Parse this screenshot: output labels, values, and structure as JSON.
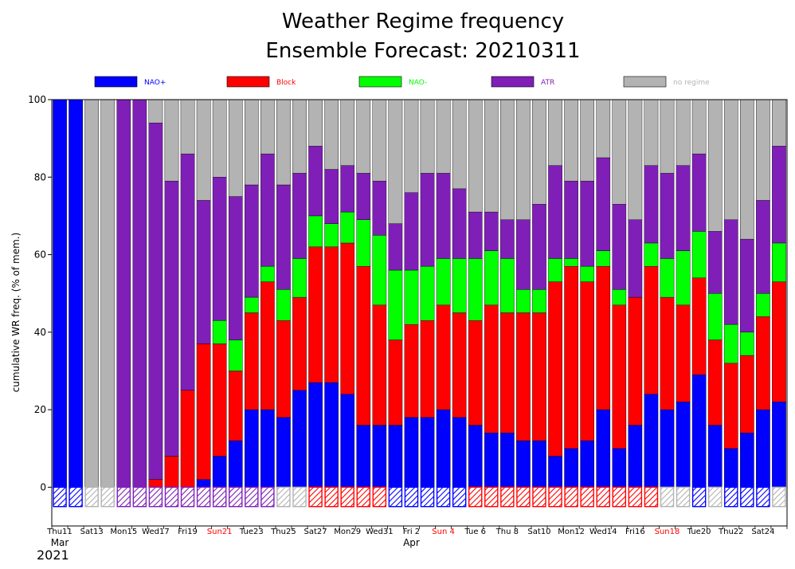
{
  "chart_data": {
    "type": "bar",
    "stacked": true,
    "title_line1": "Weather Regime frequency",
    "title_line2": "Ensemble Forecast: 20210311",
    "ylabel": "cumulative WR freq. (% of mem.)",
    "ylim": [
      -10,
      100
    ],
    "yticks": [
      0,
      20,
      40,
      60,
      80,
      100
    ],
    "year_label": "2021",
    "month_labels": [
      {
        "label": "Mar",
        "day_index": 0
      },
      {
        "label": "Apr",
        "day_index": 22
      }
    ],
    "legend": [
      {
        "key": "nao_plus",
        "label": "NAO+",
        "color": "#0000ff",
        "text_color": "#0000ff"
      },
      {
        "key": "block",
        "label": "Block",
        "color": "#ff0000",
        "text_color": "#ff0000"
      },
      {
        "key": "nao_minus",
        "label": "NAO-",
        "color": "#00ff00",
        "text_color": "#00ff00"
      },
      {
        "key": "atr",
        "label": "ATR",
        "color": "#7f1fb7",
        "text_color": "#7f1fb7"
      },
      {
        "key": "no_regime",
        "label": "no regime",
        "color": "#b3b3b3",
        "text_color": "#b3b3b3"
      }
    ],
    "x_ticks": [
      {
        "label": "Thu11",
        "day_index": 0,
        "color": "#000000"
      },
      {
        "label": "Sat13",
        "day_index": 2,
        "color": "#000000"
      },
      {
        "label": "Mon15",
        "day_index": 4,
        "color": "#000000"
      },
      {
        "label": "Wed17",
        "day_index": 6,
        "color": "#000000"
      },
      {
        "label": "Fri19",
        "day_index": 8,
        "color": "#000000"
      },
      {
        "label": "Sun21",
        "day_index": 10,
        "color": "#ff0000"
      },
      {
        "label": "Tue23",
        "day_index": 12,
        "color": "#000000"
      },
      {
        "label": "Thu25",
        "day_index": 14,
        "color": "#000000"
      },
      {
        "label": "Sat27",
        "day_index": 16,
        "color": "#000000"
      },
      {
        "label": "Mon29",
        "day_index": 18,
        "color": "#000000"
      },
      {
        "label": "Wed31",
        "day_index": 20,
        "color": "#000000"
      },
      {
        "label": "Fri 2",
        "day_index": 22,
        "color": "#000000"
      },
      {
        "label": "Sun 4",
        "day_index": 24,
        "color": "#ff0000"
      },
      {
        "label": "Tue 6",
        "day_index": 26,
        "color": "#000000"
      },
      {
        "label": "Thu 8",
        "day_index": 28,
        "color": "#000000"
      },
      {
        "label": "Sat10",
        "day_index": 30,
        "color": "#000000"
      },
      {
        "label": "Mon12",
        "day_index": 32,
        "color": "#000000"
      },
      {
        "label": "Wed14",
        "day_index": 34,
        "color": "#000000"
      },
      {
        "label": "Fri16",
        "day_index": 36,
        "color": "#000000"
      },
      {
        "label": "Sun18",
        "day_index": 38,
        "color": "#ff0000"
      },
      {
        "label": "Tue20",
        "day_index": 40,
        "color": "#000000"
      },
      {
        "label": "Thu22",
        "day_index": 42,
        "color": "#000000"
      },
      {
        "label": "Sat24",
        "day_index": 44,
        "color": "#000000"
      }
    ],
    "days": [
      "2021-03-11",
      "2021-03-12",
      "2021-03-13",
      "2021-03-14",
      "2021-03-15",
      "2021-03-16",
      "2021-03-17",
      "2021-03-18",
      "2021-03-19",
      "2021-03-20",
      "2021-03-21",
      "2021-03-22",
      "2021-03-23",
      "2021-03-24",
      "2021-03-25",
      "2021-03-26",
      "2021-03-27",
      "2021-03-28",
      "2021-03-29",
      "2021-03-30",
      "2021-03-31",
      "2021-04-01",
      "2021-04-02",
      "2021-04-03",
      "2021-04-04",
      "2021-04-05",
      "2021-04-06",
      "2021-04-07",
      "2021-04-08",
      "2021-04-09",
      "2021-04-10",
      "2021-04-11",
      "2021-04-12",
      "2021-04-13",
      "2021-04-14",
      "2021-04-15",
      "2021-04-16",
      "2021-04-17",
      "2021-04-18",
      "2021-04-19",
      "2021-04-20",
      "2021-04-21",
      "2021-04-22",
      "2021-04-23",
      "2021-04-24",
      "2021-04-25"
    ],
    "series": [
      {
        "name": "NAO+",
        "key": "nao_plus",
        "values": [
          100,
          100,
          0,
          0,
          0,
          0,
          0,
          0,
          0,
          2,
          8,
          12,
          20,
          20,
          18,
          25,
          27,
          27,
          24,
          16,
          16,
          16,
          18,
          18,
          20,
          18,
          16,
          14,
          14,
          12,
          12,
          8,
          10,
          12,
          20,
          10,
          16,
          24,
          20,
          22,
          29,
          16,
          10,
          14,
          20,
          22
        ]
      },
      {
        "name": "Block",
        "key": "block",
        "values": [
          0,
          0,
          0,
          0,
          0,
          0,
          2,
          8,
          25,
          35,
          29,
          18,
          25,
          33,
          25,
          24,
          35,
          35,
          39,
          41,
          31,
          22,
          24,
          25,
          27,
          27,
          27,
          33,
          31,
          33,
          33,
          45,
          47,
          41,
          37,
          37,
          33,
          33,
          29,
          25,
          25,
          22,
          22,
          20,
          24,
          31
        ]
      },
      {
        "name": "NAO-",
        "key": "nao_minus",
        "values": [
          0,
          0,
          0,
          0,
          0,
          0,
          0,
          0,
          0,
          0,
          6,
          8,
          4,
          4,
          8,
          10,
          8,
          6,
          8,
          12,
          18,
          18,
          14,
          14,
          12,
          14,
          16,
          14,
          14,
          6,
          6,
          6,
          2,
          4,
          4,
          4,
          0,
          6,
          10,
          14,
          12,
          12,
          10,
          6,
          6,
          10
        ]
      },
      {
        "name": "ATR",
        "key": "atr",
        "values": [
          0,
          0,
          0,
          0,
          100,
          100,
          92,
          71,
          61,
          37,
          37,
          37,
          29,
          29,
          27,
          22,
          18,
          14,
          12,
          12,
          14,
          12,
          20,
          24,
          22,
          18,
          12,
          10,
          10,
          18,
          22,
          24,
          20,
          22,
          24,
          22,
          20,
          20,
          22,
          22,
          20,
          16,
          27,
          24,
          24,
          25
        ]
      },
      {
        "name": "no regime",
        "key": "no_regime",
        "values": [
          0,
          0,
          100,
          100,
          0,
          0,
          6,
          21,
          14,
          26,
          20,
          25,
          22,
          14,
          22,
          19,
          12,
          18,
          17,
          19,
          21,
          32,
          24,
          19,
          19,
          23,
          29,
          29,
          31,
          31,
          27,
          17,
          21,
          21,
          15,
          27,
          31,
          17,
          19,
          17,
          14,
          34,
          31,
          36,
          26,
          12
        ]
      }
    ],
    "dominant_regime": [
      "nao_plus",
      "nao_plus",
      "no_regime",
      "no_regime",
      "atr",
      "atr",
      "atr",
      "atr",
      "atr",
      "atr",
      "atr",
      "atr",
      "atr",
      "atr",
      "no_regime",
      "no_regime",
      "block",
      "block",
      "block",
      "block",
      "block",
      "nao_plus",
      "nao_plus",
      "nao_plus",
      "nao_plus",
      "nao_plus",
      "block",
      "block",
      "block",
      "block",
      "block",
      "block",
      "block",
      "block",
      "block",
      "block",
      "block",
      "block",
      "no_regime",
      "no_regime",
      "nao_plus",
      "no_regime",
      "nao_plus",
      "nao_plus",
      "nao_plus",
      "no_regime"
    ]
  }
}
